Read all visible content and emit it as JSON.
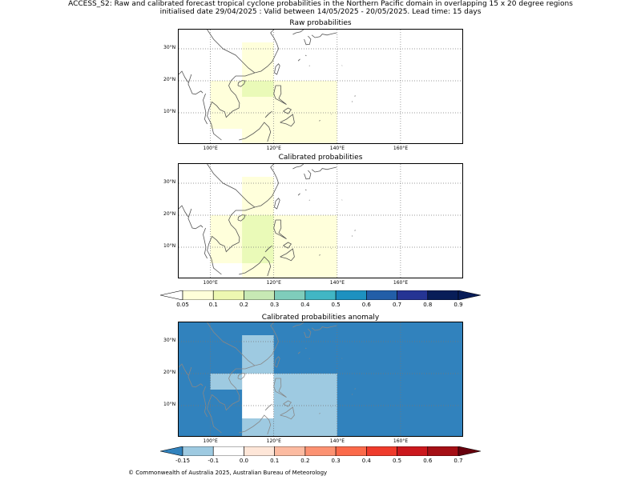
{
  "title_line1": "ACCESS_S2: Raw and calibrated forecast tropical cyclone probabilities in the Northern Pacific domain in overlapping 15 x 20 degree regions",
  "title_line2": "initialised date 29/04/2025 :  Valid between 14/05/2025 - 20/05/2025. Lead time: 15 days",
  "panels": [
    {
      "title": "Raw probabilities"
    },
    {
      "title": "Calibrated probabilities"
    },
    {
      "title": "Calibrated probabilities anomaly"
    }
  ],
  "axes": {
    "lon_ticks": [
      "100°E",
      "120°E",
      "140°E",
      "160°E"
    ],
    "lat_ticks": [
      "30°N",
      "20°N",
      "10°N"
    ]
  },
  "colorbar_prob": {
    "labels": [
      "0.05",
      "0.1",
      "0.2",
      "0.3",
      "0.4",
      "0.5",
      "0.6",
      "0.7",
      "0.8",
      "0.9"
    ],
    "colors": [
      "#ffffff",
      "#ffffd9",
      "#edf8b1",
      "#c7e9b4",
      "#7fcdbb",
      "#41b6c4",
      "#1d91c0",
      "#225ea8",
      "#253494",
      "#081d58",
      "#081d58"
    ]
  },
  "colorbar_anom": {
    "labels": [
      "-0.15",
      "-0.1",
      "0.0",
      "0.1",
      "0.2",
      "0.3",
      "0.4",
      "0.5",
      "0.6",
      "0.7"
    ],
    "colors": [
      "#3182bd",
      "#9ecae1",
      "#ffffff",
      "#fee6d8",
      "#fcbba1",
      "#fc9272",
      "#fb6a4a",
      "#ef3b2c",
      "#cb181d",
      "#a50f15",
      "#67000d"
    ]
  },
  "colors": {
    "light_yellow": "#ffffdb",
    "yellow_green": "#eafab8",
    "anom_dark": "#3182bd",
    "anom_light": "#9ecae1",
    "coast": "#555555",
    "grid": "#777777"
  },
  "copyright": "© Commonwealth of Australia 2025, Australian Bureau of Meteorology"
}
